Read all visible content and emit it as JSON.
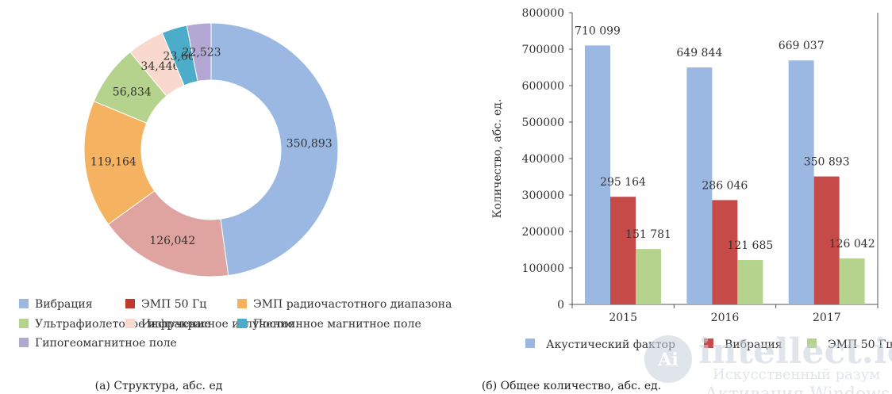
{
  "chart_data": [
    {
      "type": "pie",
      "style": "donut",
      "caption": "(a) Структура, абс. ед",
      "slices": [
        {
          "label": "Вибрация",
          "value": 350893,
          "value_label": "350,893",
          "color": "#9bb8e3"
        },
        {
          "label": "ЭМП 50 Гц",
          "value": 126042,
          "value_label": "126,042",
          "color": "#dfa3a0"
        },
        {
          "label": "ЭМП радиочастотного диапазона",
          "value": 119164,
          "value_label": "119,164",
          "color": "#f5b362"
        },
        {
          "label": "Ультрафиолетовое излучение",
          "value": 56834,
          "value_label": "56,834",
          "color": "#b5d38c"
        },
        {
          "label": "Инфракрасное излучение",
          "value": 34446,
          "value_label": "34,446",
          "color": "#f9d9cd"
        },
        {
          "label": "Постоянное магнитное поле",
          "value": 23665,
          "value_label": "23,665",
          "color": "#4badc9"
        },
        {
          "label": "Гипогеомагнитное поле",
          "value": 22523,
          "value_label": "22,523",
          "color": "#b3a7d3"
        }
      ],
      "legend": [
        {
          "label": "Вибрация",
          "color": "#9bb8e3"
        },
        {
          "label": "ЭМП 50 Гц",
          "color": "#c0392b"
        },
        {
          "label": "ЭМП радиочастотного диапазона",
          "color": "#f5b362"
        },
        {
          "label": "Ультрафиолетовое излучение",
          "color": "#b5d38c"
        },
        {
          "label": "Инфракрасное излучение",
          "color": "#f9d9cd"
        },
        {
          "label": "Постоянное магнитное поле",
          "color": "#4badc9"
        },
        {
          "label": "Гипогеомагнитное поле",
          "color": "#b3a7d3"
        }
      ],
      "legend_position": "bottom"
    },
    {
      "type": "bar",
      "caption": "(б) Общее количество, абс. ед.",
      "ylabel": "Количество, абс. ед.",
      "xlabel": "",
      "categories": [
        "2015",
        "2016",
        "2017"
      ],
      "ylim": [
        0,
        800000
      ],
      "yticks": [
        0,
        100000,
        200000,
        300000,
        400000,
        500000,
        600000,
        700000,
        800000
      ],
      "grid": false,
      "legend_position": "bottom",
      "series": [
        {
          "name": "Акустический фактор",
          "color": "#9bb8e3",
          "values": [
            710099,
            649844,
            669037
          ],
          "labels": [
            "710 099",
            "649 844",
            "669 037"
          ]
        },
        {
          "name": "Вибрация",
          "color": "#c64a47",
          "values": [
            295164,
            286046,
            350893
          ],
          "labels": [
            "295 164",
            "286 046",
            "350 893"
          ]
        },
        {
          "name": "ЭМП 50 Гц",
          "color": "#b5d38c",
          "values": [
            151781,
            121685,
            126042
          ],
          "labels": [
            "151 781",
            "121 685",
            "126 042"
          ]
        }
      ]
    }
  ],
  "watermark": {
    "brand": "intellect.icu",
    "tagline": "Искусственный разум",
    "overlay": "Активация Windows"
  }
}
